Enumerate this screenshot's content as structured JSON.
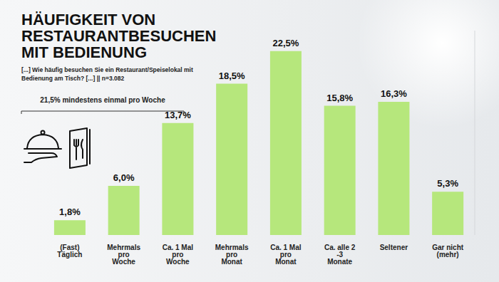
{
  "chart_data": {
    "type": "bar",
    "title": "HÄUFIGKEIT VON RESTAURANTBESUCHEN MIT BEDIENUNG",
    "subtitle": "[...] Wie häufig besuchen Sie ein Restaurant/Speiselokal mit Bedienung am Tisch? [...] || n=3.082",
    "annotation": "21,5% mindestens einmal pro Woche",
    "categories": [
      "(Fast) Täglich",
      "Mehrmals pro Woche",
      "Ca. 1 Mal pro Woche",
      "Mehrmals pro Monat",
      "Ca. 1 Mal pro Monat",
      "Ca. alle 2 -3 Monate",
      "Seltener",
      "Gar nicht (mehr)"
    ],
    "values": [
      1.8,
      6.0,
      13.7,
      18.5,
      22.5,
      15.8,
      16.3,
      5.3
    ],
    "value_labels": [
      "1,8%",
      "6,0%",
      "13,7%",
      "18,5%",
      "22,5%",
      "15,8%",
      "16,3%",
      "5,3%"
    ],
    "color": "#b6e77c",
    "ylim": [
      0,
      25
    ],
    "yticks": [],
    "data_labels": true,
    "tick_labels": "x",
    "grid": false
  }
}
